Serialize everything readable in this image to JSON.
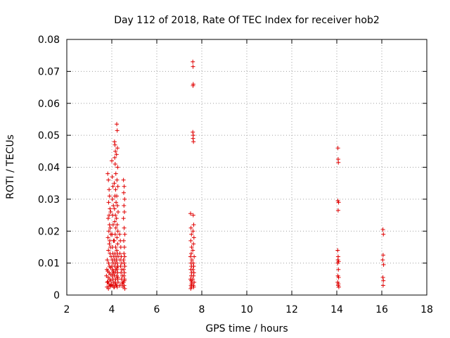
{
  "chart_data": {
    "type": "scatter",
    "title": "Day 112 of 2018, Rate Of TEC Index for receiver hob2",
    "xlabel": "GPS time / hours",
    "ylabel": "ROTI / TECUs",
    "xlim": [
      2,
      18
    ],
    "ylim": [
      0,
      0.08
    ],
    "xticks": [
      "2",
      "4",
      "6",
      "8",
      "10",
      "12",
      "14",
      "16",
      "18"
    ],
    "yticks": [
      "0",
      "0.01",
      "0.02",
      "0.03",
      "0.04",
      "0.05",
      "0.06",
      "0.07",
      "0.08"
    ],
    "grid": true,
    "marker": "+",
    "color": "#e00000",
    "series": [
      {
        "name": "ROTI",
        "points": [
          [
            3.82,
            0.038
          ],
          [
            3.85,
            0.036
          ],
          [
            3.88,
            0.033
          ],
          [
            3.9,
            0.031
          ],
          [
            3.86,
            0.029
          ],
          [
            3.92,
            0.027
          ],
          [
            3.95,
            0.026
          ],
          [
            3.88,
            0.025
          ],
          [
            3.84,
            0.024
          ],
          [
            3.9,
            0.022
          ],
          [
            3.93,
            0.021
          ],
          [
            3.87,
            0.02
          ],
          [
            3.96,
            0.019
          ],
          [
            3.83,
            0.018
          ],
          [
            3.91,
            0.017
          ],
          [
            3.89,
            0.016
          ],
          [
            3.94,
            0.015
          ],
          [
            3.85,
            0.014
          ],
          [
            3.92,
            0.013
          ],
          [
            3.97,
            0.012
          ],
          [
            3.8,
            0.011
          ],
          [
            3.86,
            0.01
          ],
          [
            3.9,
            0.009
          ],
          [
            3.95,
            0.0085
          ],
          [
            3.78,
            0.008
          ],
          [
            3.82,
            0.0075
          ],
          [
            3.88,
            0.007
          ],
          [
            3.93,
            0.0065
          ],
          [
            3.76,
            0.006
          ],
          [
            3.84,
            0.0055
          ],
          [
            3.91,
            0.005
          ],
          [
            3.96,
            0.0045
          ],
          [
            3.8,
            0.004
          ],
          [
            3.87,
            0.0035
          ],
          [
            3.94,
            0.003
          ],
          [
            3.79,
            0.0025
          ],
          [
            3.85,
            0.002
          ],
          [
            3.92,
            0.0028
          ],
          [
            3.98,
            0.0032
          ],
          [
            3.83,
            0.0042
          ],
          [
            4.0,
            0.042
          ],
          [
            4.02,
            0.037
          ],
          [
            4.05,
            0.034
          ],
          [
            4.03,
            0.03
          ],
          [
            4.07,
            0.028
          ],
          [
            4.04,
            0.025
          ],
          [
            4.06,
            0.022
          ],
          [
            4.01,
            0.019
          ],
          [
            4.08,
            0.017
          ],
          [
            4.03,
            0.015
          ],
          [
            4.05,
            0.013
          ],
          [
            4.09,
            0.012
          ],
          [
            4.02,
            0.011
          ],
          [
            4.06,
            0.01
          ],
          [
            4.0,
            0.009
          ],
          [
            4.04,
            0.008
          ],
          [
            4.08,
            0.007
          ],
          [
            4.01,
            0.006
          ],
          [
            4.05,
            0.005
          ],
          [
            4.07,
            0.004
          ],
          [
            4.03,
            0.003
          ],
          [
            4.09,
            0.0025
          ],
          [
            4.02,
            0.0065
          ],
          [
            4.06,
            0.0075
          ],
          [
            4.12,
            0.048
          ],
          [
            4.14,
            0.047
          ],
          [
            4.16,
            0.045
          ],
          [
            4.13,
            0.043
          ],
          [
            4.15,
            0.041
          ],
          [
            4.18,
            0.038
          ],
          [
            4.11,
            0.035
          ],
          [
            4.17,
            0.033
          ],
          [
            4.14,
            0.031
          ],
          [
            4.19,
            0.029
          ],
          [
            4.12,
            0.027
          ],
          [
            4.16,
            0.025
          ],
          [
            4.13,
            0.023
          ],
          [
            4.18,
            0.021
          ],
          [
            4.15,
            0.019
          ],
          [
            4.11,
            0.017
          ],
          [
            4.17,
            0.015
          ],
          [
            4.14,
            0.013
          ],
          [
            4.19,
            0.012
          ],
          [
            4.12,
            0.011
          ],
          [
            4.16,
            0.01
          ],
          [
            4.13,
            0.009
          ],
          [
            4.18,
            0.008
          ],
          [
            4.15,
            0.007
          ],
          [
            4.11,
            0.006
          ],
          [
            4.17,
            0.005
          ],
          [
            4.14,
            0.004
          ],
          [
            4.19,
            0.003
          ],
          [
            4.12,
            0.0025
          ],
          [
            4.16,
            0.0035
          ],
          [
            4.22,
            0.0535
          ],
          [
            4.24,
            0.0515
          ],
          [
            4.25,
            0.046
          ],
          [
            4.21,
            0.044
          ],
          [
            4.26,
            0.04
          ],
          [
            4.23,
            0.036
          ],
          [
            4.27,
            0.034
          ],
          [
            4.22,
            0.031
          ],
          [
            4.25,
            0.028
          ],
          [
            4.28,
            0.026
          ],
          [
            4.21,
            0.024
          ],
          [
            4.24,
            0.022
          ],
          [
            4.27,
            0.02
          ],
          [
            4.23,
            0.018
          ],
          [
            4.26,
            0.016
          ],
          [
            4.22,
            0.014
          ],
          [
            4.25,
            0.013
          ],
          [
            4.28,
            0.012
          ],
          [
            4.21,
            0.011
          ],
          [
            4.24,
            0.01
          ],
          [
            4.27,
            0.009
          ],
          [
            4.23,
            0.008
          ],
          [
            4.26,
            0.007
          ],
          [
            4.22,
            0.006
          ],
          [
            4.25,
            0.005
          ],
          [
            4.28,
            0.004
          ],
          [
            4.21,
            0.003
          ],
          [
            4.24,
            0.0025
          ],
          [
            4.27,
            0.0055
          ],
          [
            4.23,
            0.0085
          ],
          [
            4.35,
            0.019
          ],
          [
            4.38,
            0.017
          ],
          [
            4.4,
            0.015
          ],
          [
            4.36,
            0.013
          ],
          [
            4.42,
            0.012
          ],
          [
            4.37,
            0.011
          ],
          [
            4.44,
            0.01
          ],
          [
            4.39,
            0.009
          ],
          [
            4.45,
            0.008
          ],
          [
            4.41,
            0.007
          ],
          [
            4.47,
            0.006
          ],
          [
            4.43,
            0.005
          ],
          [
            4.48,
            0.004
          ],
          [
            4.36,
            0.003
          ],
          [
            4.5,
            0.0025
          ],
          [
            4.46,
            0.0035
          ],
          [
            4.52,
            0.036
          ],
          [
            4.55,
            0.034
          ],
          [
            4.53,
            0.032
          ],
          [
            4.57,
            0.03
          ],
          [
            4.54,
            0.028
          ],
          [
            4.56,
            0.026
          ],
          [
            4.52,
            0.024
          ],
          [
            4.55,
            0.021
          ],
          [
            4.58,
            0.019
          ],
          [
            4.53,
            0.017
          ],
          [
            4.56,
            0.015
          ],
          [
            4.54,
            0.013
          ],
          [
            4.57,
            0.012
          ],
          [
            4.52,
            0.011
          ],
          [
            4.55,
            0.01
          ],
          [
            4.58,
            0.009
          ],
          [
            4.53,
            0.008
          ],
          [
            4.56,
            0.007
          ],
          [
            4.54,
            0.006
          ],
          [
            4.57,
            0.005
          ],
          [
            4.52,
            0.004
          ],
          [
            4.55,
            0.003
          ],
          [
            4.58,
            0.002
          ],
          [
            4.56,
            0.0045
          ],
          [
            7.5,
            0.0255
          ],
          [
            7.52,
            0.021
          ],
          [
            7.54,
            0.019
          ],
          [
            7.51,
            0.017
          ],
          [
            7.55,
            0.015
          ],
          [
            7.53,
            0.013
          ],
          [
            7.5,
            0.012
          ],
          [
            7.56,
            0.011
          ],
          [
            7.52,
            0.01
          ],
          [
            7.54,
            0.009
          ],
          [
            7.51,
            0.008
          ],
          [
            7.55,
            0.007
          ],
          [
            7.53,
            0.006
          ],
          [
            7.5,
            0.005
          ],
          [
            7.56,
            0.004
          ],
          [
            7.52,
            0.003
          ],
          [
            7.54,
            0.0025
          ],
          [
            7.51,
            0.002
          ],
          [
            7.55,
            0.0035
          ],
          [
            7.53,
            0.0045
          ],
          [
            7.6,
            0.073
          ],
          [
            7.61,
            0.0715
          ],
          [
            7.62,
            0.066
          ],
          [
            7.61,
            0.0655
          ],
          [
            7.6,
            0.051
          ],
          [
            7.62,
            0.05
          ],
          [
            7.61,
            0.049
          ],
          [
            7.63,
            0.048
          ],
          [
            7.62,
            0.025
          ],
          [
            7.64,
            0.022
          ],
          [
            7.61,
            0.02
          ],
          [
            7.65,
            0.018
          ],
          [
            7.63,
            0.016
          ],
          [
            7.6,
            0.014
          ],
          [
            7.66,
            0.012
          ],
          [
            7.62,
            0.01
          ],
          [
            7.64,
            0.009
          ],
          [
            7.61,
            0.008
          ],
          [
            7.65,
            0.007
          ],
          [
            7.63,
            0.006
          ],
          [
            7.6,
            0.005
          ],
          [
            7.66,
            0.004
          ],
          [
            7.62,
            0.003
          ],
          [
            7.64,
            0.0025
          ],
          [
            14.05,
            0.046
          ],
          [
            14.06,
            0.0425
          ],
          [
            14.07,
            0.0415
          ],
          [
            14.05,
            0.0295
          ],
          [
            14.08,
            0.029
          ],
          [
            14.06,
            0.0265
          ],
          [
            14.04,
            0.014
          ],
          [
            14.06,
            0.012
          ],
          [
            14.05,
            0.011
          ],
          [
            14.08,
            0.0105
          ],
          [
            14.04,
            0.01
          ],
          [
            14.07,
            0.008
          ],
          [
            14.05,
            0.006
          ],
          [
            14.08,
            0.0055
          ],
          [
            14.04,
            0.004
          ],
          [
            14.06,
            0.003
          ],
          [
            14.09,
            0.0025
          ],
          [
            14.07,
            0.0035
          ],
          [
            16.05,
            0.0205
          ],
          [
            16.07,
            0.019
          ],
          [
            16.06,
            0.0125
          ],
          [
            16.04,
            0.011
          ],
          [
            16.08,
            0.0095
          ],
          [
            16.05,
            0.0055
          ],
          [
            16.07,
            0.0045
          ],
          [
            16.06,
            0.003
          ]
        ]
      }
    ]
  }
}
